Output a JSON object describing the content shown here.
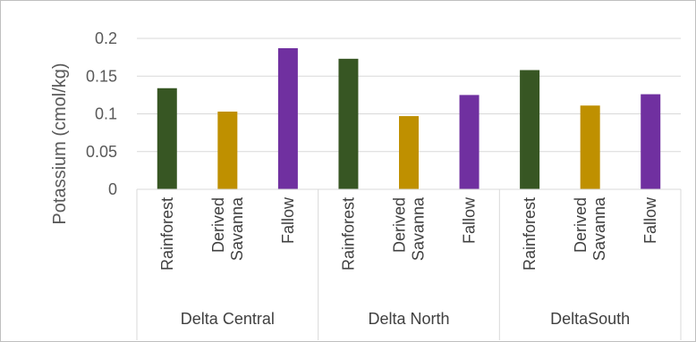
{
  "chart_data": {
    "type": "bar",
    "ylabel": "Potassium (cmol/kg)",
    "xlabel": "",
    "ylim": [
      0,
      0.2
    ],
    "yticks": [
      "0",
      "0.05",
      "0.1",
      "0.15",
      "0.2"
    ],
    "ytick_values": [
      0,
      0.05,
      0.1,
      0.15,
      0.2
    ],
    "grid": true,
    "groups": [
      {
        "name": "Delta Central",
        "bars": [
          {
            "label": "Rainforest",
            "value": 0.134,
            "color": "#375623"
          },
          {
            "label": "Derived Savanna",
            "value": 0.103,
            "color": "#BF9000"
          },
          {
            "label": "Fallow",
            "value": 0.187,
            "color": "#7030A0"
          }
        ]
      },
      {
        "name": "Delta North",
        "bars": [
          {
            "label": "Rainforest",
            "value": 0.173,
            "color": "#375623"
          },
          {
            "label": "Derived Savanna",
            "value": 0.097,
            "color": "#BF9000"
          },
          {
            "label": "Fallow",
            "value": 0.125,
            "color": "#7030A0"
          }
        ]
      },
      {
        "name": "DeltaSouth",
        "bars": [
          {
            "label": "Rainforest",
            "value": 0.158,
            "color": "#375623"
          },
          {
            "label": "Derived Savanna",
            "value": 0.111,
            "color": "#BF9000"
          },
          {
            "label": "Fallow",
            "value": 0.126,
            "color": "#7030A0"
          }
        ]
      }
    ]
  }
}
